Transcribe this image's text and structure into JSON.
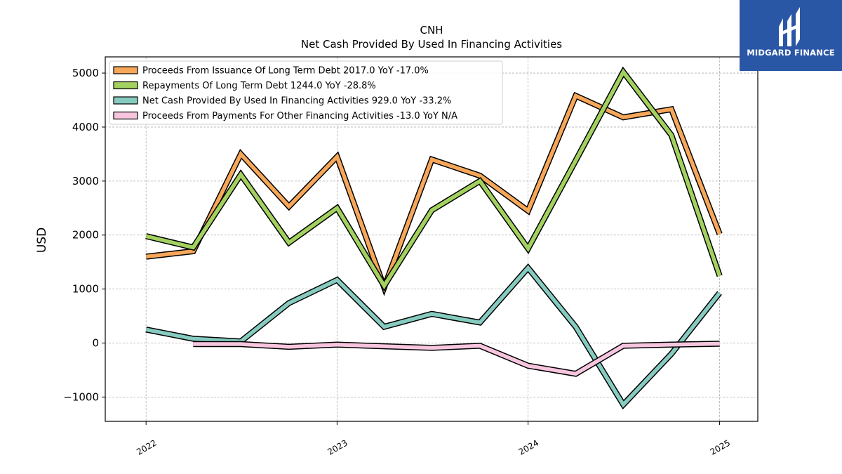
{
  "chart_data": {
    "type": "line",
    "title": "CNH",
    "subtitle": "Net Cash Provided By Used In Financing Activities",
    "ylabel": "USD",
    "ylim": [
      -1450,
      5300
    ],
    "yticks": [
      -1000,
      0,
      1000,
      2000,
      3000,
      4000,
      5000
    ],
    "ytick_labels": [
      "−1000",
      "0",
      "1000",
      "2000",
      "3000",
      "4000",
      "5000"
    ],
    "xlim": [
      "2021-10-15",
      "2025-03-15"
    ],
    "xticks": [
      "2022-01-01",
      "2023-01-01",
      "2024-01-01",
      "2025-01-01"
    ],
    "xtick_labels": [
      "2022",
      "2023",
      "2024",
      "2025"
    ],
    "grid": true,
    "legend_position": "top-left",
    "series": [
      {
        "name": "Proceeds From Issuance Of Long Term Debt",
        "legend_label": "Proceeds From Issuance Of Long Term Debt  2017.0 YoY -17.0%",
        "color": "#f6a75a",
        "x": [
          "2022-01-01",
          "2022-04-01",
          "2022-07-01",
          "2022-10-01",
          "2023-01-01",
          "2023-04-01",
          "2023-07-01",
          "2023-10-01",
          "2024-01-01",
          "2024-04-01",
          "2024-07-01",
          "2024-10-01",
          "2025-01-01"
        ],
        "values": [
          1600,
          1700,
          3500,
          2530,
          3450,
          1030,
          3400,
          3100,
          2450,
          4580,
          4180,
          4330,
          2017
        ]
      },
      {
        "name": "Repayments Of Long Term Debt",
        "legend_label": "Repayments Of Long Term Debt  1244.0 YoY -28.8%",
        "color": "#a3d15f",
        "x": [
          "2022-01-01",
          "2022-04-01",
          "2022-07-01",
          "2022-10-01",
          "2023-01-01",
          "2023-04-01",
          "2023-07-01",
          "2023-10-01",
          "2024-01-01",
          "2024-04-01",
          "2024-07-01",
          "2024-10-01",
          "2025-01-01"
        ],
        "values": [
          1980,
          1770,
          3120,
          1860,
          2500,
          1060,
          2460,
          3000,
          1750,
          3380,
          5020,
          3850,
          1244
        ]
      },
      {
        "name": "Net Cash Provided By Used In Financing Activities",
        "legend_label": "Net Cash Provided By Used In Financing Activities  929.0 YoY -33.2%",
        "color": "#86cbbf",
        "x": [
          "2022-01-01",
          "2022-04-01",
          "2022-07-01",
          "2022-10-01",
          "2023-01-01",
          "2023-04-01",
          "2023-07-01",
          "2023-10-01",
          "2024-01-01",
          "2024-04-01",
          "2024-07-01",
          "2024-10-01",
          "2025-01-01"
        ],
        "values": [
          250,
          80,
          30,
          740,
          1170,
          300,
          540,
          380,
          1390,
          300,
          -1140,
          -200,
          929
        ]
      },
      {
        "name": "Proceeds From Payments For Other Financing Activities",
        "legend_label": "Proceeds From Payments For Other Financing Activities  -13.0 YoY N/A",
        "color": "#f7c6de",
        "x": [
          "2022-04-01",
          "2022-07-01",
          "2022-10-01",
          "2023-01-01",
          "2023-04-01",
          "2023-07-01",
          "2023-10-01",
          "2024-01-01",
          "2024-04-01",
          "2024-07-01",
          "2024-10-01",
          "2025-01-01"
        ],
        "values": [
          -20,
          -20,
          -70,
          -30,
          -60,
          -90,
          -50,
          -420,
          -570,
          -50,
          -30,
          -13
        ]
      }
    ]
  },
  "brand": {
    "name": "MIDGARD FINANCE",
    "color": "#2a56a6"
  }
}
